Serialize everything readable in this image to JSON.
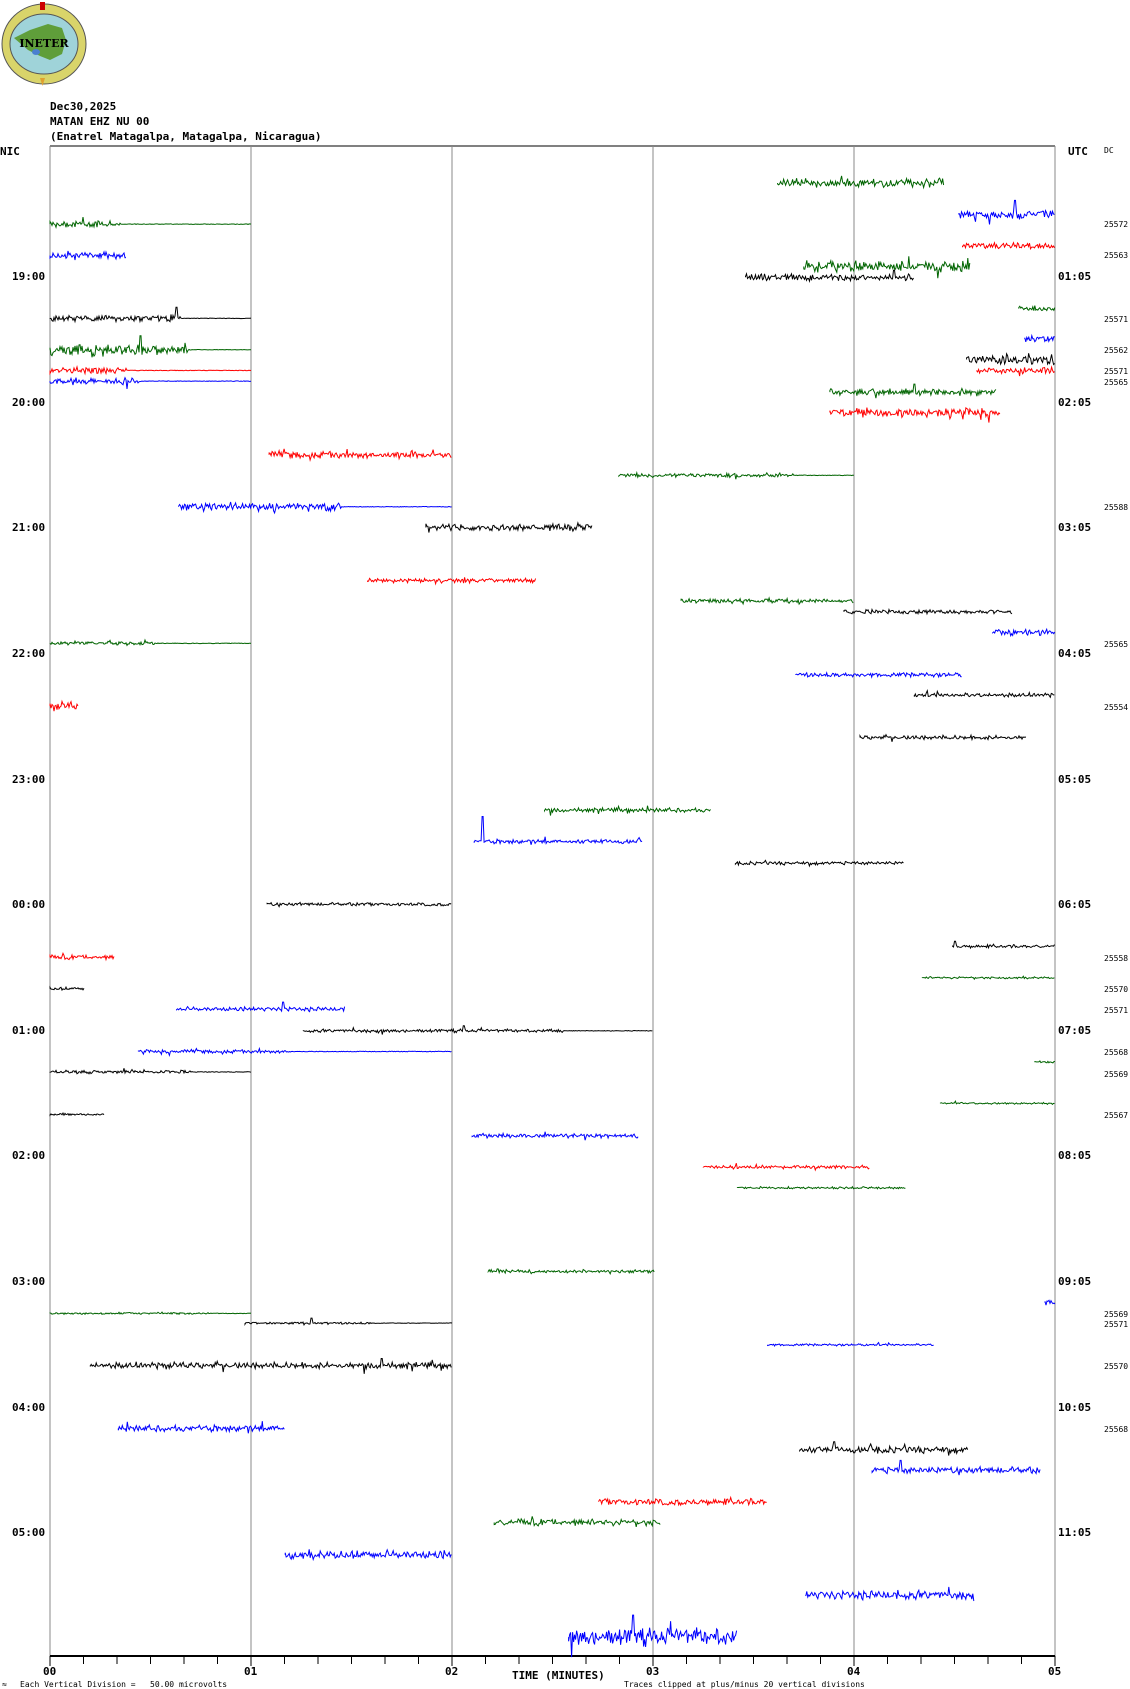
{
  "header": {
    "logo_text": "INETER",
    "date": "Dec30,2025",
    "station": "MATAN EHZ NU 00",
    "location": "(Enatrel Matagalpa, Matagalpa, Nicaragua)",
    "left_tz": "NIC",
    "right_tz": "UTC",
    "dc_header": "DC"
  },
  "footer": {
    "scale_note": "Each Vertical Division =   50.00 microvolts",
    "clip_note": "Traces clipped at plus/minus 20 vertical divisions",
    "small_mark": "≈"
  },
  "chart_data": {
    "type": "line",
    "title": "MATAN EHZ NU 00 helicorder",
    "xlabel": "TIME (MINUTES)",
    "xlim": [
      0,
      5
    ],
    "x_ticks": [
      "00",
      "01",
      "02",
      "03",
      "04",
      "05"
    ],
    "row_minutes": 15,
    "rows": 47,
    "left_hour_labels": [
      {
        "row": 3,
        "text": "19:00"
      },
      {
        "row": 7,
        "text": "20:00"
      },
      {
        "row": 11,
        "text": "21:00"
      },
      {
        "row": 15,
        "text": "22:00"
      },
      {
        "row": 19,
        "text": "23:00"
      },
      {
        "row": 23,
        "text": "00:00"
      },
      {
        "row": 27,
        "text": "01:00"
      },
      {
        "row": 31,
        "text": "02:00"
      },
      {
        "row": 35,
        "text": "03:00"
      },
      {
        "row": 39,
        "text": "04:00"
      },
      {
        "row": 43,
        "text": "05:00"
      }
    ],
    "right_hour_labels": [
      {
        "row": 3,
        "text": "01:05"
      },
      {
        "row": 7,
        "text": "02:05"
      },
      {
        "row": 11,
        "text": "03:05"
      },
      {
        "row": 15,
        "text": "04:05"
      },
      {
        "row": 19,
        "text": "05:05"
      },
      {
        "row": 23,
        "text": "06:05"
      },
      {
        "row": 27,
        "text": "07:05"
      },
      {
        "row": 31,
        "text": "08:05"
      },
      {
        "row": 35,
        "text": "09:05"
      },
      {
        "row": 39,
        "text": "10:05"
      },
      {
        "row": 43,
        "text": "11:05"
      }
    ],
    "dc_values": [
      {
        "row": 1.31,
        "text": "25572"
      },
      {
        "row": 2.31,
        "text": "25563"
      },
      {
        "row": 4.35,
        "text": "25571"
      },
      {
        "row": 5.35,
        "text": "25562"
      },
      {
        "row": 6.0,
        "text": "25571"
      },
      {
        "row": 6.35,
        "text": "25565"
      },
      {
        "row": 10.35,
        "text": "25588"
      },
      {
        "row": 14.69,
        "text": "25565"
      },
      {
        "row": 16.69,
        "text": "25554"
      },
      {
        "row": 24.69,
        "text": "25558"
      },
      {
        "row": 25.69,
        "text": "25570"
      },
      {
        "row": 26.35,
        "text": "25571"
      },
      {
        "row": 27.69,
        "text": "25568"
      },
      {
        "row": 28.38,
        "text": "25569"
      },
      {
        "row": 29.69,
        "text": "25567"
      },
      {
        "row": 36.03,
        "text": "25569"
      },
      {
        "row": 36.35,
        "text": "25571"
      },
      {
        "row": 37.69,
        "text": "25570"
      },
      {
        "row": 39.69,
        "text": "25568"
      }
    ],
    "colors": {
      "k": "#000000",
      "r": "#ff0000",
      "b": "#0000ff",
      "g": "#006400"
    },
    "series": [
      [
        0,
        3.62,
        4.45,
        "g",
        4
      ],
      [
        1,
        4.52,
        5,
        "b",
        4,
        null,
        4.8,
        14
      ],
      [
        1.31,
        0,
        1,
        "g",
        3,
        0.35
      ],
      [
        2,
        4.54,
        5,
        "r",
        3
      ],
      [
        2.31,
        0,
        0.38,
        "b",
        3
      ],
      [
        2.66,
        3.75,
        4.58,
        "g",
        5
      ],
      [
        3,
        3.46,
        4.3,
        "k",
        3,
        null,
        4.2,
        7
      ],
      [
        4,
        4.82,
        5,
        "g",
        2
      ],
      [
        4.31,
        0,
        1,
        "k",
        3,
        0.65,
        0.63,
        11
      ],
      [
        4.97,
        4.85,
        5,
        "b",
        3
      ],
      [
        5.31,
        0,
        1,
        "g",
        6,
        0.69,
        0.45,
        14
      ],
      [
        5.62,
        4.56,
        5,
        "k",
        5
      ],
      [
        5.97,
        0,
        1,
        "r",
        3,
        0.38
      ],
      [
        5.97,
        4.61,
        5,
        "r",
        3
      ],
      [
        6.31,
        0,
        1,
        "b",
        3,
        0.45
      ],
      [
        6.66,
        3.88,
        4.71,
        "g",
        3,
        null,
        4.3,
        8
      ],
      [
        7.31,
        3.88,
        4.73,
        "r",
        4
      ],
      [
        8.66,
        1.09,
        2,
        "r",
        3
      ],
      [
        9.31,
        2.83,
        4,
        "g",
        2,
        3.7
      ],
      [
        10.31,
        0.64,
        2,
        "b",
        4,
        1.45
      ],
      [
        10.97,
        1.87,
        2.7,
        "k",
        3
      ],
      [
        12.66,
        1.58,
        2.42,
        "r",
        2
      ],
      [
        13.31,
        3.14,
        4,
        "g",
        2
      ],
      [
        13.66,
        3.95,
        4.79,
        "k",
        2
      ],
      [
        14.31,
        4.69,
        5,
        "b",
        3
      ],
      [
        14.66,
        0,
        1,
        "g",
        2,
        0.52
      ],
      [
        15.66,
        3.71,
        4.54,
        "b",
        2
      ],
      [
        16.31,
        4.3,
        5,
        "k",
        2
      ],
      [
        16.66,
        0,
        0.14,
        "r",
        4
      ],
      [
        17.66,
        4.03,
        4.86,
        "k",
        2
      ],
      [
        19.97,
        2.46,
        3.29,
        "g",
        2
      ],
      [
        20.97,
        2.11,
        2.95,
        "b",
        2,
        null,
        2.15,
        25
      ],
      [
        21.66,
        3.41,
        4.25,
        "k",
        1.5
      ],
      [
        22.97,
        1.08,
        2,
        "k",
        1.5
      ],
      [
        24.31,
        4.49,
        5,
        "k",
        1.5,
        null,
        4.5,
        5
      ],
      [
        24.66,
        0,
        0.32,
        "r",
        2
      ],
      [
        25.31,
        4.34,
        5,
        "g",
        1
      ],
      [
        25.66,
        0,
        0.17,
        "k",
        1.5
      ],
      [
        26.31,
        0.63,
        1.47,
        "b",
        2,
        null,
        1.16,
        7
      ],
      [
        27,
        1.26,
        3,
        "k",
        1.5,
        2.55,
        2.06,
        5
      ],
      [
        27.66,
        0.44,
        2,
        "b",
        1.5,
        1.2
      ],
      [
        28,
        4.9,
        5,
        "g",
        1
      ],
      [
        28.31,
        0,
        1,
        "k",
        1.5,
        0.7
      ],
      [
        29.31,
        4.43,
        5,
        "g",
        1
      ],
      [
        29.66,
        0,
        0.27,
        "k",
        1
      ],
      [
        30.34,
        2.1,
        2.93,
        "b",
        2
      ],
      [
        31.34,
        3.25,
        4.08,
        "r",
        1.5
      ],
      [
        32,
        3.42,
        4.26,
        "g",
        1
      ],
      [
        34.66,
        2.18,
        3.01,
        "g",
        1.5
      ],
      [
        35.66,
        4.95,
        5,
        "b",
        2
      ],
      [
        36,
        0,
        1,
        "g",
        1,
        0.8
      ],
      [
        36.31,
        0.97,
        2,
        "k",
        1,
        1.6,
        1.3,
        5
      ],
      [
        37,
        3.57,
        4.4,
        "b",
        1
      ],
      [
        37.66,
        0.2,
        2,
        "k",
        3,
        null,
        1.65,
        7
      ],
      [
        39.66,
        0.34,
        1.17,
        "b",
        3
      ],
      [
        40.34,
        3.73,
        4.57,
        "k",
        3,
        null,
        3.9,
        8
      ],
      [
        41,
        4.09,
        4.93,
        "b",
        3,
        null,
        4.23,
        10
      ],
      [
        42,
        2.73,
        3.57,
        "r",
        3
      ],
      [
        42.66,
        2.21,
        3.04,
        "g",
        3
      ],
      [
        43.69,
        1.17,
        2,
        "b",
        4
      ],
      [
        44.97,
        3.76,
        4.6,
        "b",
        4
      ],
      [
        46.31,
        2.58,
        3.42,
        "b",
        8,
        null,
        2.9,
        22
      ]
    ]
  }
}
